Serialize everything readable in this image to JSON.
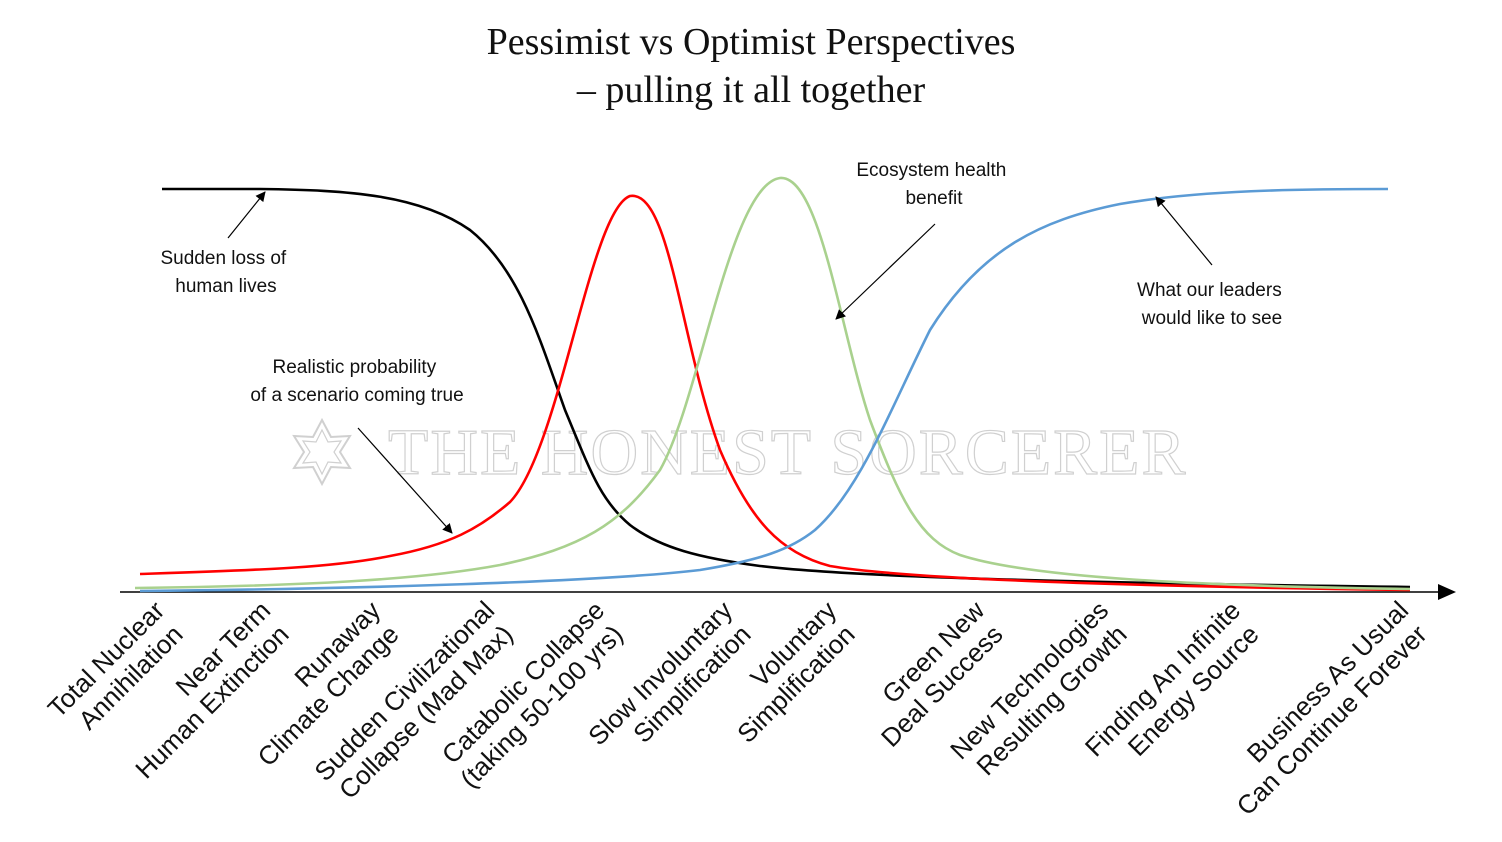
{
  "title": {
    "line1": "Pessimist vs Optimist Perspectives",
    "line2": "– pulling it all together"
  },
  "watermark": "THE HONEST SORCERER",
  "annotations": {
    "loss": [
      "Sudden loss of",
      "human lives"
    ],
    "probability": [
      "Realistic probability",
      "of a scenario coming true"
    ],
    "ecosystem": [
      "Ecosystem health",
      "benefit"
    ],
    "leaders": [
      "What our leaders",
      "would like to see"
    ]
  },
  "categories": [
    [
      "Total Nuclear",
      "Annihilation"
    ],
    [
      "Near Term",
      "Human Extinction"
    ],
    [
      "Runaway",
      "Climate Change"
    ],
    [
      "Sudden Civilizational",
      "Collapse (Mad Max)"
    ],
    [
      "Catabolic Collapse",
      "(taking 50-100 yrs)"
    ],
    [
      "Slow Involuntary",
      "Simplification"
    ],
    [
      "Voluntary",
      "Simplification"
    ],
    [
      "Green New",
      "Deal Success"
    ],
    [
      "New Technologies",
      "Resulting Growth"
    ],
    [
      "Finding An Infinite",
      "Energy Source"
    ],
    [
      "Business As Usual",
      "Can Continue Forever"
    ]
  ],
  "curves": [
    {
      "key": "loss",
      "color": "#000000"
    },
    {
      "key": "probability",
      "color": "#ff0000"
    },
    {
      "key": "ecosystem",
      "color": "#a9d18e"
    },
    {
      "key": "leaders",
      "color": "#5b9bd5"
    }
  ]
}
